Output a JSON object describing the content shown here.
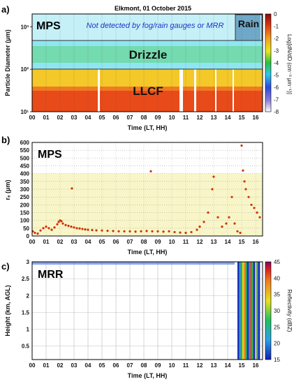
{
  "chart_data": [
    {
      "panel": "a)",
      "type": "heatmap",
      "title": "Elkmont, 01 October 2015",
      "label": "MPS",
      "annotation": "Not detected by fog/rain gauges or MRR",
      "xlabel": "Time (LT, HH)",
      "ylabel": "Particle Diameter (μm)",
      "yscale": "log",
      "xlim": [
        0,
        16.5
      ],
      "ylim": [
        10,
        2000
      ],
      "xticks": [
        "00",
        "01",
        "02",
        "03",
        "04",
        "05",
        "06",
        "07",
        "08",
        "09",
        "10",
        "11",
        "12",
        "13",
        "14",
        "15",
        "16"
      ],
      "yticks": [
        "10¹",
        "10²",
        "10³"
      ],
      "colorbar": {
        "label": "Log[dN/dD (cm⁻³ μm⁻¹)]",
        "range": [
          -8,
          0
        ],
        "ticks": [
          "0",
          "-1",
          "-2",
          "-3",
          "-4",
          "-5",
          "-6",
          "-7",
          "-8"
        ]
      },
      "regions": [
        {
          "name": "LLCF",
          "d_min": 10,
          "d_max": 100
        },
        {
          "name": "Drizzle",
          "d_min": 100,
          "d_max": 500
        },
        {
          "name": "Rain",
          "d_min": 500,
          "d_max": 2000,
          "t_min": 14.7,
          "t_max": 16.3
        }
      ],
      "gaps_hours": [
        [
          4.7,
          4.85
        ],
        [
          10.55,
          10.8
        ],
        [
          11.6,
          11.75
        ],
        [
          13.1,
          13.2
        ],
        [
          14.35,
          14.45
        ]
      ]
    },
    {
      "panel": "b)",
      "type": "scatter",
      "label": "MPS",
      "xlabel": "Time (LT, HH)",
      "ylabel": "rₑ (μm)",
      "xlim": [
        0,
        16.5
      ],
      "ylim": [
        0,
        600
      ],
      "xticks": [
        "00",
        "01",
        "02",
        "03",
        "04",
        "05",
        "06",
        "07",
        "08",
        "09",
        "10",
        "11",
        "12",
        "13",
        "14",
        "15",
        "16"
      ],
      "yticks": [
        "0",
        "50",
        "100",
        "150",
        "200",
        "250",
        "300",
        "350",
        "400",
        "450",
        "500",
        "550",
        "600"
      ],
      "highlight_band": [
        0,
        400
      ],
      "series": [
        {
          "points": [
            [
              0.05,
              30
            ],
            [
              0.2,
              20
            ],
            [
              0.4,
              15
            ],
            [
              0.6,
              35
            ],
            [
              0.8,
              50
            ],
            [
              1.0,
              60
            ],
            [
              1.2,
              50
            ],
            [
              1.4,
              40
            ],
            [
              1.6,
              55
            ],
            [
              1.8,
              75
            ],
            [
              1.9,
              90
            ],
            [
              2.0,
              100
            ],
            [
              2.1,
              95
            ],
            [
              2.2,
              80
            ],
            [
              2.4,
              70
            ],
            [
              2.6,
              65
            ],
            [
              2.8,
              60
            ],
            [
              3.0,
              55
            ],
            [
              3.2,
              50
            ],
            [
              3.4,
              48
            ],
            [
              3.6,
              45
            ],
            [
              3.8,
              42
            ],
            [
              4.0,
              40
            ],
            [
              4.3,
              38
            ],
            [
              4.6,
              36
            ],
            [
              5.0,
              35
            ],
            [
              5.4,
              33
            ],
            [
              5.8,
              32
            ],
            [
              6.2,
              30
            ],
            [
              6.6,
              30
            ],
            [
              7.0,
              30
            ],
            [
              7.4,
              28
            ],
            [
              7.8,
              30
            ],
            [
              8.2,
              32
            ],
            [
              8.6,
              30
            ],
            [
              9.0,
              30
            ],
            [
              9.4,
              28
            ],
            [
              9.8,
              30
            ],
            [
              10.2,
              25
            ],
            [
              10.6,
              22
            ],
            [
              11.0,
              20
            ],
            [
              11.4,
              25
            ],
            [
              11.8,
              40
            ],
            [
              12.0,
              60
            ],
            [
              12.3,
              90
            ],
            [
              12.6,
              150
            ],
            [
              12.9,
              300
            ],
            [
              13.0,
              380
            ],
            [
              13.3,
              120
            ],
            [
              13.6,
              60
            ],
            [
              13.9,
              80
            ],
            [
              14.1,
              120
            ],
            [
              14.3,
              250
            ],
            [
              14.5,
              80
            ],
            [
              14.7,
              30
            ],
            [
              14.9,
              20
            ],
            [
              15.0,
              580
            ],
            [
              15.1,
              420
            ],
            [
              15.2,
              350
            ],
            [
              15.3,
              300
            ],
            [
              15.5,
              250
            ],
            [
              15.7,
              200
            ],
            [
              15.9,
              180
            ],
            [
              16.1,
              150
            ],
            [
              16.3,
              120
            ],
            [
              2.85,
              305
            ],
            [
              8.5,
              415
            ]
          ]
        }
      ]
    },
    {
      "panel": "c)",
      "type": "heatmap",
      "label": "MRR",
      "xlabel": "Time (LT, HH)",
      "ylabel": "Height (km, AGL)",
      "xlim": [
        0,
        16.5
      ],
      "ylim": [
        0.1,
        3
      ],
      "xticks": [
        "00",
        "01",
        "02",
        "03",
        "04",
        "05",
        "06",
        "07",
        "08",
        "09",
        "10",
        "11",
        "12",
        "13",
        "14",
        "15",
        "16"
      ],
      "yticks": [
        "0.5",
        "1",
        "1.5",
        "2",
        "2.5",
        "3"
      ],
      "colorbar": {
        "label": "Reflectivity (dBZ)",
        "range": [
          15,
          45
        ],
        "ticks": [
          "45",
          "40",
          "35",
          "30",
          "25",
          "20",
          "15"
        ]
      },
      "echo_hours": [
        14.7,
        16.3
      ]
    }
  ]
}
